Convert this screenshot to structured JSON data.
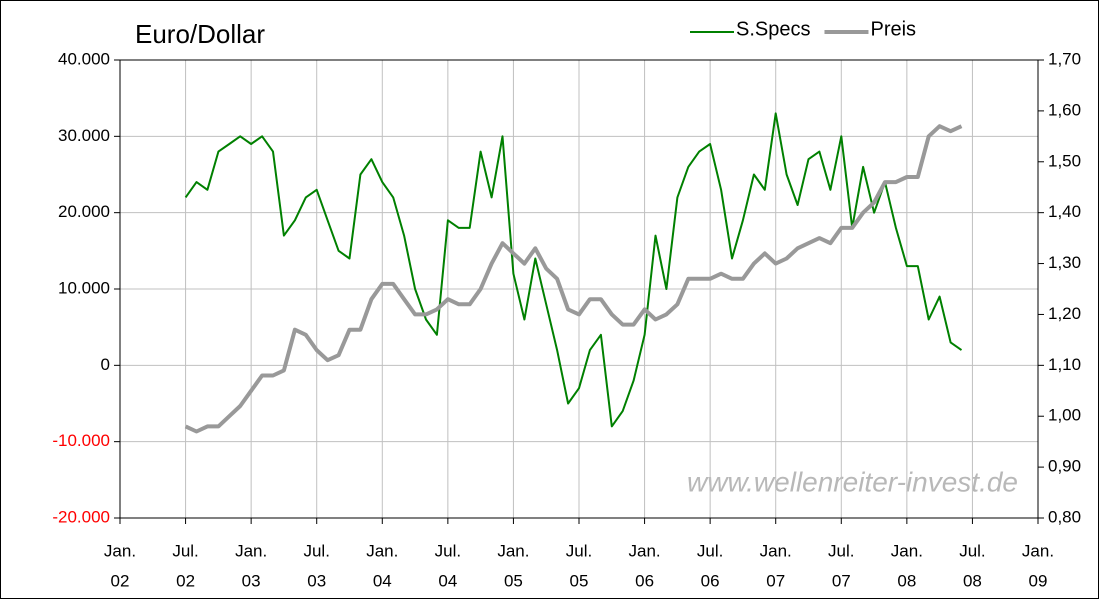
{
  "chart_data": {
    "type": "line",
    "title": "Euro/Dollar",
    "annotation": "www.wellenreiter-invest.de",
    "x": [
      "2002-07",
      "2002-08",
      "2002-09",
      "2002-10",
      "2002-11",
      "2002-12",
      "2003-01",
      "2003-02",
      "2003-03",
      "2003-04",
      "2003-05",
      "2003-06",
      "2003-07",
      "2003-08",
      "2003-09",
      "2003-10",
      "2003-11",
      "2003-12",
      "2004-01",
      "2004-02",
      "2004-03",
      "2004-04",
      "2004-05",
      "2004-06",
      "2004-07",
      "2004-08",
      "2004-09",
      "2004-10",
      "2004-11",
      "2004-12",
      "2005-01",
      "2005-02",
      "2005-03",
      "2005-04",
      "2005-05",
      "2005-06",
      "2005-07",
      "2005-08",
      "2005-09",
      "2005-10",
      "2005-11",
      "2005-12",
      "2006-01",
      "2006-02",
      "2006-03",
      "2006-04",
      "2006-05",
      "2006-06",
      "2006-07",
      "2006-08",
      "2006-09",
      "2006-10",
      "2006-11",
      "2006-12",
      "2007-01",
      "2007-02",
      "2007-03",
      "2007-04",
      "2007-05",
      "2007-06",
      "2007-07",
      "2007-08",
      "2007-09",
      "2007-10",
      "2007-11",
      "2007-12",
      "2008-01",
      "2008-02",
      "2008-03",
      "2008-04",
      "2008-05",
      "2008-06"
    ],
    "series": [
      {
        "name": "S.Specs",
        "color": "#008000",
        "axis": "y",
        "values": [
          22000,
          24000,
          23000,
          28000,
          29000,
          30000,
          29000,
          30000,
          28000,
          17000,
          19000,
          22000,
          23000,
          19000,
          15000,
          14000,
          25000,
          27000,
          24000,
          22000,
          17000,
          10000,
          6000,
          4000,
          19000,
          18000,
          18000,
          28000,
          22000,
          30000,
          12000,
          6000,
          14000,
          8000,
          2000,
          -5000,
          -3000,
          2000,
          4000,
          -8000,
          -6000,
          -2000,
          4000,
          17000,
          10000,
          22000,
          26000,
          28000,
          29000,
          23000,
          14000,
          19000,
          25000,
          23000,
          33000,
          25000,
          21000,
          27000,
          28000,
          23000,
          30000,
          18000,
          26000,
          20000,
          24000,
          18000,
          13000,
          13000,
          6000,
          9000,
          3000,
          2000
        ]
      },
      {
        "name": "Preis",
        "color": "#999999",
        "axis": "y2",
        "values": [
          0.98,
          0.97,
          0.98,
          0.98,
          1.0,
          1.02,
          1.05,
          1.08,
          1.08,
          1.09,
          1.17,
          1.16,
          1.13,
          1.11,
          1.12,
          1.17,
          1.17,
          1.23,
          1.26,
          1.26,
          1.23,
          1.2,
          1.2,
          1.21,
          1.23,
          1.22,
          1.22,
          1.25,
          1.3,
          1.34,
          1.32,
          1.3,
          1.33,
          1.29,
          1.27,
          1.21,
          1.2,
          1.23,
          1.23,
          1.2,
          1.18,
          1.18,
          1.21,
          1.19,
          1.2,
          1.22,
          1.27,
          1.27,
          1.27,
          1.28,
          1.27,
          1.27,
          1.3,
          1.32,
          1.3,
          1.31,
          1.33,
          1.34,
          1.35,
          1.34,
          1.37,
          1.37,
          1.4,
          1.42,
          1.46,
          1.46,
          1.47,
          1.47,
          1.55,
          1.57,
          1.56,
          1.57
        ]
      }
    ],
    "xlim": [
      "2002-01",
      "2009-01"
    ],
    "xticks": [
      {
        "value": "2002-01",
        "label": [
          "Jan.",
          "02"
        ]
      },
      {
        "value": "2002-07",
        "label": [
          "Jul.",
          "02"
        ]
      },
      {
        "value": "2003-01",
        "label": [
          "Jan.",
          "03"
        ]
      },
      {
        "value": "2003-07",
        "label": [
          "Jul.",
          "03"
        ]
      },
      {
        "value": "2004-01",
        "label": [
          "Jan.",
          "04"
        ]
      },
      {
        "value": "2004-07",
        "label": [
          "Jul.",
          "04"
        ]
      },
      {
        "value": "2005-01",
        "label": [
          "Jan.",
          "05"
        ]
      },
      {
        "value": "2005-07",
        "label": [
          "Jul.",
          "05"
        ]
      },
      {
        "value": "2006-01",
        "label": [
          "Jan.",
          "06"
        ]
      },
      {
        "value": "2006-07",
        "label": [
          "Jul.",
          "06"
        ]
      },
      {
        "value": "2007-01",
        "label": [
          "Jan.",
          "07"
        ]
      },
      {
        "value": "2007-07",
        "label": [
          "Jul.",
          "07"
        ]
      },
      {
        "value": "2008-01",
        "label": [
          "Jan.",
          "08"
        ]
      },
      {
        "value": "2008-07",
        "label": [
          "Jul.",
          "08"
        ]
      },
      {
        "value": "2009-01",
        "label": [
          "Jan.",
          "09"
        ]
      }
    ],
    "ylim": [
      -20000,
      40000
    ],
    "yticks": [
      {
        "value": -20000,
        "label": "-20.000"
      },
      {
        "value": -10000,
        "label": "-10.000"
      },
      0,
      {
        "value": 10000,
        "label": "10.000"
      },
      {
        "value": 20000,
        "label": "20.000"
      },
      {
        "value": 30000,
        "label": "30.000"
      },
      {
        "value": 40000,
        "label": "40.000"
      }
    ],
    "y2lim": [
      0.8,
      1.7
    ],
    "y2ticks": [
      {
        "value": 0.8,
        "label": "0,80"
      },
      {
        "value": 0.9,
        "label": "0,90"
      },
      {
        "value": 1.0,
        "label": "1,00"
      },
      {
        "value": 1.1,
        "label": "1,10"
      },
      {
        "value": 1.2,
        "label": "1,20"
      },
      {
        "value": 1.3,
        "label": "1,30"
      },
      {
        "value": 1.4,
        "label": "1,40"
      },
      {
        "value": 1.5,
        "label": "1,50"
      },
      {
        "value": 1.6,
        "label": "1,60"
      },
      {
        "value": 1.7,
        "label": "1,70"
      }
    ],
    "negative_tick_color": "#ff0000",
    "grid": true,
    "legend": "top-right"
  }
}
